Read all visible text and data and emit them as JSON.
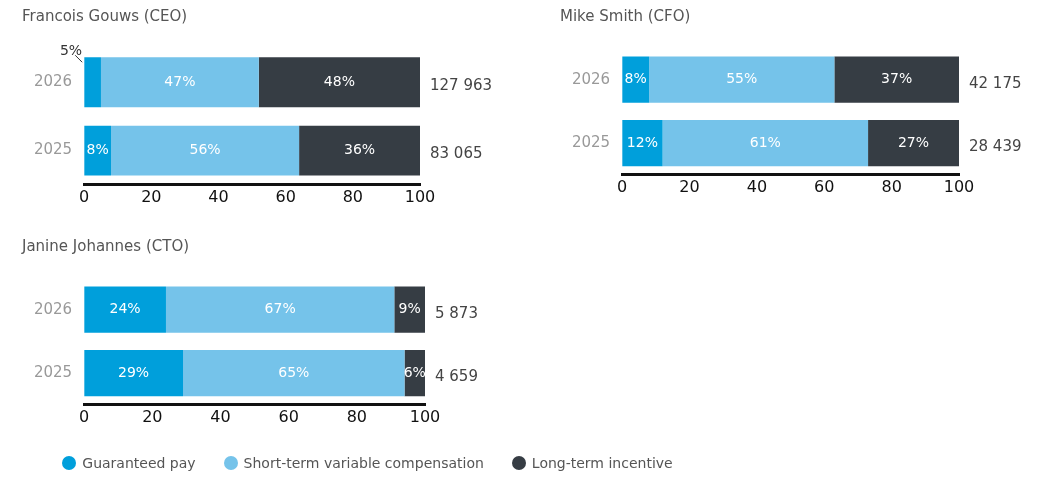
{
  "chart_data": [
    {
      "type": "bar",
      "orientation": "horizontal",
      "stacked": true,
      "title": "Francois Gouws (CEO)",
      "categories": [
        "2026",
        "2025"
      ],
      "series": [
        {
          "color": "#009fdb",
          "values": [
            5,
            8
          ],
          "value_labels": [
            "5%",
            "8%"
          ]
        },
        {
          "color": "#75c3ea",
          "values": [
            47,
            56
          ],
          "value_labels": [
            "47%",
            "56%"
          ]
        },
        {
          "color": "#363d44",
          "values": [
            48,
            36
          ],
          "value_labels": [
            "48%",
            "36%"
          ]
        }
      ],
      "xlim": [
        0,
        100
      ],
      "xticks": [
        0,
        20,
        40,
        60,
        80,
        100
      ],
      "annotations": [
        "127 963",
        "83 065"
      ],
      "grid": false,
      "legend": false
    },
    {
      "type": "bar",
      "orientation": "horizontal",
      "stacked": true,
      "title": "Mike Smith (CFO)",
      "categories": [
        "2026",
        "2025"
      ],
      "series": [
        {
          "color": "#009fdb",
          "values": [
            8,
            12
          ],
          "value_labels": [
            "8%",
            "12%"
          ]
        },
        {
          "color": "#75c3ea",
          "values": [
            55,
            61
          ],
          "value_labels": [
            "55%",
            "61%"
          ]
        },
        {
          "color": "#363d44",
          "values": [
            37,
            27
          ],
          "value_labels": [
            "37%",
            "27%"
          ]
        }
      ],
      "xlim": [
        0,
        100
      ],
      "xticks": [
        0,
        20,
        40,
        60,
        80,
        100
      ],
      "annotations": [
        "42 175",
        "28 439"
      ],
      "grid": false,
      "legend": false
    },
    {
      "type": "bar",
      "orientation": "horizontal",
      "stacked": true,
      "title": "Janine Johannes (CTO)",
      "categories": [
        "2026",
        "2025"
      ],
      "series": [
        {
          "name": "Guaranteed pay",
          "color": "#009fdb",
          "values": [
            24,
            29
          ],
          "value_labels": [
            "24%",
            "29%"
          ]
        },
        {
          "name": "Short-term variable compensation",
          "color": "#75c3ea",
          "values": [
            67,
            65
          ],
          "value_labels": [
            "67%",
            "65%"
          ]
        },
        {
          "name": "Long-term incentive",
          "color": "#363d44",
          "values": [
            9,
            6
          ],
          "value_labels": [
            "9%",
            "6%"
          ]
        }
      ],
      "xlim": [
        0,
        100
      ],
      "xticks": [
        0,
        20,
        40,
        60,
        80,
        100
      ],
      "annotations": [
        "5 873",
        "4 659"
      ],
      "grid": false,
      "legend": "bottom"
    }
  ]
}
